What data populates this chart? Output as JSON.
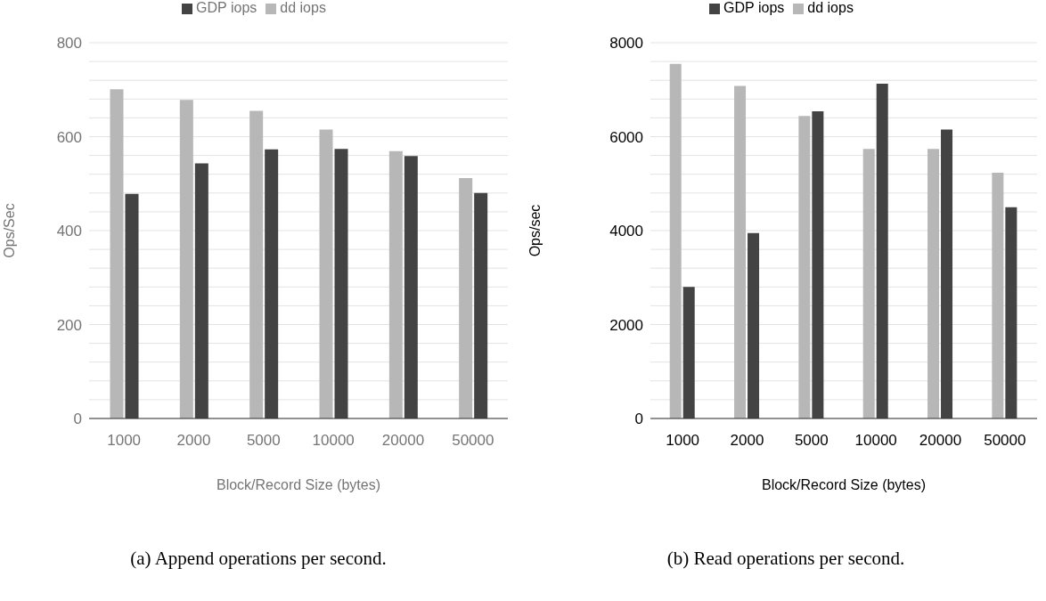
{
  "chart_data": [
    {
      "type": "bar",
      "xlabel": "Block/Record Size (bytes)",
      "ylabel": "Ops/Sec",
      "categories": [
        "1000",
        "2000",
        "5000",
        "10000",
        "20000",
        "50000"
      ],
      "series": [
        {
          "name": "dd iops",
          "color": "#b7b7b7",
          "values": [
            701,
            678,
            655,
            615,
            569,
            512
          ]
        },
        {
          "name": "GDP iops",
          "color": "#434343",
          "values": [
            478,
            543,
            573,
            574,
            559,
            480
          ]
        }
      ],
      "ylim": [
        0,
        800
      ],
      "yticks": [
        0,
        {
          "value": 40,
          "label": null
        },
        {
          "value": 80,
          "label": null
        },
        {
          "value": 120,
          "label": null
        },
        {
          "value": 160,
          "label": null
        },
        200,
        {
          "value": 240,
          "label": null
        },
        {
          "value": 280,
          "label": null
        },
        {
          "value": 320,
          "label": null
        },
        {
          "value": 360,
          "label": null
        },
        400,
        {
          "value": 440,
          "label": null
        },
        {
          "value": 480,
          "label": null
        },
        {
          "value": 520,
          "label": null
        },
        {
          "value": 560,
          "label": null
        },
        600,
        {
          "value": 640,
          "label": null
        },
        {
          "value": 680,
          "label": null
        },
        {
          "value": 720,
          "label": null
        },
        {
          "value": 760,
          "label": null
        },
        800
      ],
      "grid": "y",
      "legend": "top",
      "annotations": [
        "(a) Append operations per second."
      ]
    },
    {
      "type": "bar",
      "xlabel": "Block/Record Size (bytes)",
      "ylabel": "Ops/sec",
      "categories": [
        "1000",
        "2000",
        "5000",
        "10000",
        "20000",
        "50000"
      ],
      "series": [
        {
          "name": "dd iops",
          "color": "#b7b7b7",
          "values": [
            7550,
            7080,
            6440,
            5740,
            5740,
            5230
          ]
        },
        {
          "name": "GDP iops",
          "color": "#434343",
          "values": [
            2800,
            3950,
            6540,
            7130,
            6150,
            4500
          ]
        }
      ],
      "ylim": [
        0,
        8000
      ],
      "yticks": [
        0,
        {
          "value": 400,
          "label": null
        },
        {
          "value": 800,
          "label": null
        },
        {
          "value": 1200,
          "label": null
        },
        {
          "value": 1600,
          "label": null
        },
        2000,
        {
          "value": 2400,
          "label": null
        },
        {
          "value": 2800,
          "label": null
        },
        {
          "value": 3200,
          "label": null
        },
        {
          "value": 3600,
          "label": null
        },
        4000,
        {
          "value": 4400,
          "label": null
        },
        {
          "value": 4800,
          "label": null
        },
        {
          "value": 5200,
          "label": null
        },
        {
          "value": 5600,
          "label": null
        },
        6000,
        {
          "value": 6400,
          "label": null
        },
        {
          "value": 6800,
          "label": null
        },
        {
          "value": 7200,
          "label": null
        },
        {
          "value": 7600,
          "label": null
        },
        8000
      ],
      "grid": "y",
      "legend": "top",
      "annotations": [
        "(b) Read operations per second."
      ]
    }
  ]
}
